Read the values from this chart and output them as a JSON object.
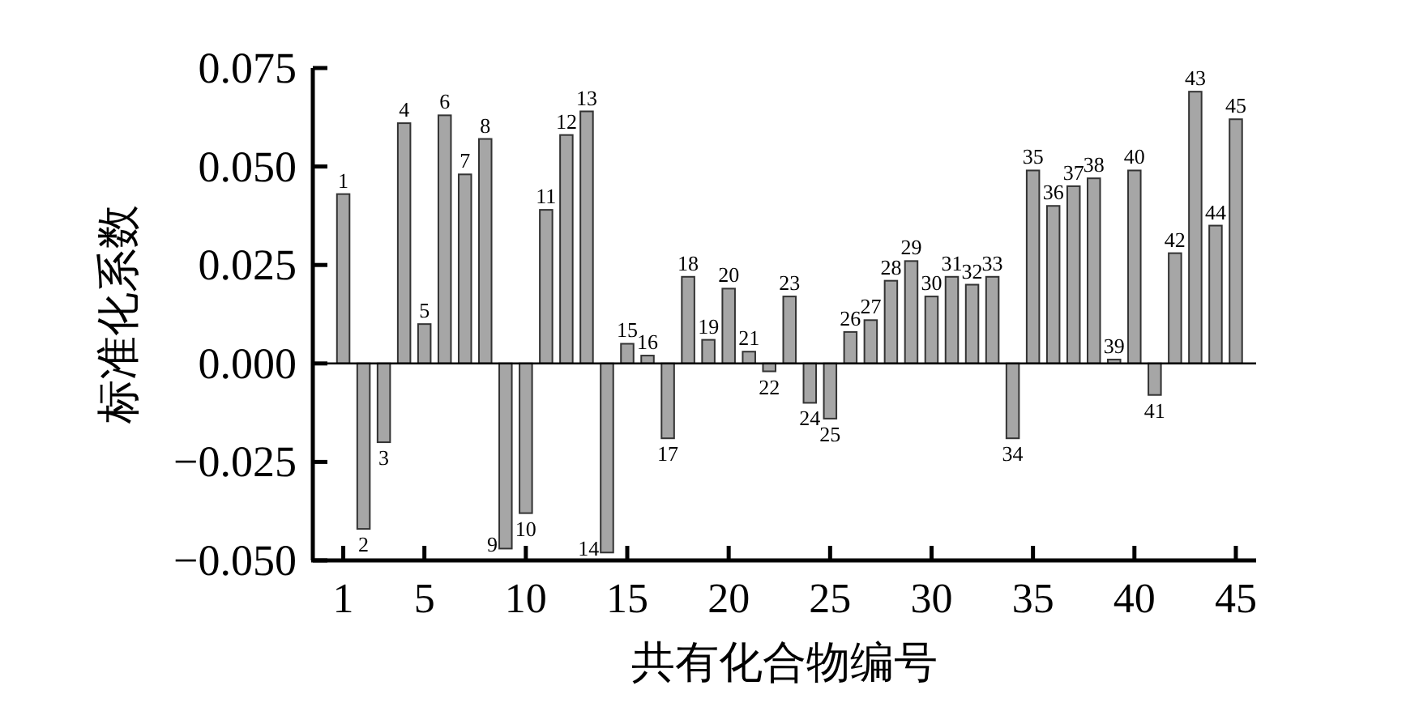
{
  "chart_data": {
    "type": "bar",
    "xlabel": "共有化合物编号",
    "ylabel": "标准化系数",
    "x": [
      1,
      2,
      3,
      4,
      5,
      6,
      7,
      8,
      9,
      10,
      11,
      12,
      13,
      14,
      15,
      16,
      17,
      18,
      19,
      20,
      21,
      22,
      23,
      24,
      25,
      26,
      27,
      28,
      29,
      30,
      31,
      32,
      33,
      34,
      35,
      36,
      37,
      38,
      39,
      40,
      41,
      42,
      43,
      44,
      45
    ],
    "values": [
      0.043,
      -0.042,
      -0.02,
      0.061,
      0.01,
      0.063,
      0.048,
      0.057,
      -0.047,
      -0.038,
      0.039,
      0.058,
      0.064,
      -0.048,
      0.005,
      0.002,
      -0.019,
      0.022,
      0.006,
      0.019,
      0.003,
      -0.002,
      0.017,
      -0.01,
      -0.014,
      0.008,
      0.011,
      0.021,
      0.026,
      0.017,
      0.022,
      0.02,
      0.022,
      -0.019,
      0.049,
      0.04,
      0.045,
      0.047,
      0.001,
      0.049,
      -0.008,
      0.028,
      0.069,
      0.035,
      0.062
    ],
    "annotations": [
      {
        "text": "1",
        "x": 1,
        "y": 0.043
      },
      {
        "text": "2",
        "x": 2,
        "y": -0.042
      },
      {
        "text": "3",
        "x": 3,
        "y": -0.02
      },
      {
        "text": "4",
        "x": 4,
        "y": 0.061
      },
      {
        "text": "5",
        "x": 5,
        "y": 0.01
      },
      {
        "text": "6",
        "x": 6,
        "y": 0.063
      },
      {
        "text": "7",
        "x": 7,
        "y": 0.048
      },
      {
        "text": "8",
        "x": 8,
        "y": 0.057
      },
      {
        "text": "9",
        "x": 9,
        "y": -0.047
      },
      {
        "text": "10",
        "x": 10,
        "y": -0.038
      },
      {
        "text": "11",
        "x": 11,
        "y": 0.039
      },
      {
        "text": "12",
        "x": 12,
        "y": 0.058
      },
      {
        "text": "13",
        "x": 13,
        "y": 0.064
      },
      {
        "text": "14",
        "x": 14,
        "y": -0.048
      },
      {
        "text": "15",
        "x": 15,
        "y": 0.005
      },
      {
        "text": "16",
        "x": 16,
        "y": 0.002
      },
      {
        "text": "17",
        "x": 17,
        "y": -0.019
      },
      {
        "text": "18",
        "x": 18,
        "y": 0.022
      },
      {
        "text": "19",
        "x": 19,
        "y": 0.006
      },
      {
        "text": "20",
        "x": 20,
        "y": 0.019
      },
      {
        "text": "21",
        "x": 21,
        "y": 0.003
      },
      {
        "text": "22",
        "x": 22,
        "y": -0.002
      },
      {
        "text": "23",
        "x": 23,
        "y": 0.017
      },
      {
        "text": "24",
        "x": 24,
        "y": -0.01
      },
      {
        "text": "25",
        "x": 25,
        "y": -0.014
      },
      {
        "text": "26",
        "x": 26,
        "y": 0.008
      },
      {
        "text": "27",
        "x": 27,
        "y": 0.011
      },
      {
        "text": "28",
        "x": 28,
        "y": 0.021
      },
      {
        "text": "29",
        "x": 29,
        "y": 0.026
      },
      {
        "text": "30",
        "x": 30,
        "y": 0.017
      },
      {
        "text": "31",
        "x": 31,
        "y": 0.022
      },
      {
        "text": "32",
        "x": 32,
        "y": 0.02
      },
      {
        "text": "33",
        "x": 33,
        "y": 0.022
      },
      {
        "text": "34",
        "x": 34,
        "y": -0.019
      },
      {
        "text": "35",
        "x": 35,
        "y": 0.049
      },
      {
        "text": "36",
        "x": 36,
        "y": 0.04
      },
      {
        "text": "37",
        "x": 37,
        "y": 0.045
      },
      {
        "text": "38",
        "x": 38,
        "y": 0.047
      },
      {
        "text": "39",
        "x": 39,
        "y": 0.001
      },
      {
        "text": "40",
        "x": 40,
        "y": 0.049
      },
      {
        "text": "41",
        "x": 41,
        "y": -0.008
      },
      {
        "text": "42",
        "x": 42,
        "y": 0.028
      },
      {
        "text": "43",
        "x": 43,
        "y": 0.069
      },
      {
        "text": "44",
        "x": 44,
        "y": 0.035
      },
      {
        "text": "45",
        "x": 45,
        "y": 0.062
      }
    ],
    "color": "#a6a6a6",
    "xlim": [
      -0.5,
      46
    ],
    "xticks": [
      1,
      5,
      10,
      15,
      20,
      25,
      30,
      35,
      40,
      45
    ],
    "ylim": [
      -0.05,
      0.075
    ],
    "yticks": [
      {
        "value": -0.05,
        "label": "−0.050"
      },
      {
        "value": -0.025,
        "label": "−0.025"
      },
      {
        "value": 0,
        "label": "0.000"
      },
      {
        "value": 0.025,
        "label": "0.025"
      },
      {
        "value": 0.05,
        "label": "0.050"
      },
      {
        "value": 0.075,
        "label": "0.075"
      }
    ],
    "ref_lines": [
      {
        "axis": "y",
        "value": 0,
        "color": "#000000"
      }
    ]
  }
}
